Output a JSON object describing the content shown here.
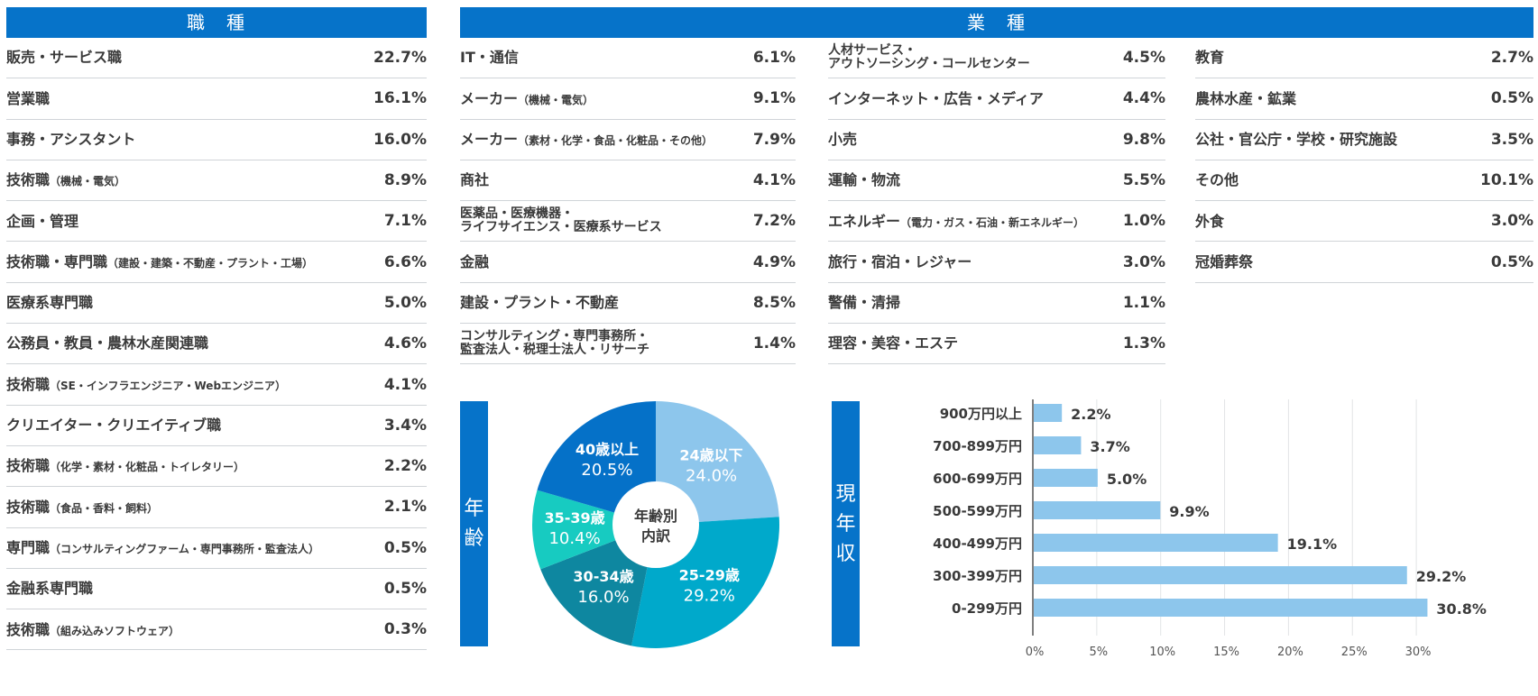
{
  "occupation": {
    "title": "職　種",
    "items": [
      {
        "label": "販売・サービス職",
        "sub": "",
        "value": "22.7%"
      },
      {
        "label": "営業職",
        "sub": "",
        "value": "16.1%"
      },
      {
        "label": "事務・アシスタント",
        "sub": "",
        "value": "16.0%"
      },
      {
        "label": "技術職",
        "sub": "（機械・電気）",
        "value": "8.9%"
      },
      {
        "label": "企画・管理",
        "sub": "",
        "value": "7.1%"
      },
      {
        "label": "技術職・専門職",
        "sub": "（建設・建築・不動産・プラント・工場）",
        "value": "6.6%"
      },
      {
        "label": "医療系専門職",
        "sub": "",
        "value": "5.0%"
      },
      {
        "label": "公務員・教員・農林水産関連職",
        "sub": "",
        "value": "4.6%"
      },
      {
        "label": "技術職",
        "sub": "（SE・インフラエンジニア・Webエンジニア）",
        "value": "4.1%"
      },
      {
        "label": "クリエイター・クリエイティブ職",
        "sub": "",
        "value": "3.4%"
      },
      {
        "label": "技術職",
        "sub": "（化学・素材・化粧品・トイレタリー）",
        "value": "2.2%"
      },
      {
        "label": "技術職",
        "sub": "（食品・香料・飼料）",
        "value": "2.1%"
      },
      {
        "label": "専門職",
        "sub": "（コンサルティングファーム・専門事務所・監査法人）",
        "value": "0.5%"
      },
      {
        "label": "金融系専門職",
        "sub": "",
        "value": "0.5%"
      },
      {
        "label": "技術職",
        "sub": "（組み込みソフトウェア）",
        "value": "0.3%"
      }
    ]
  },
  "industry": {
    "title": "業　種",
    "columns": [
      [
        {
          "label": "IT・通信",
          "sub": "",
          "value": "6.1%"
        },
        {
          "label": "メーカー",
          "sub": "（機械・電気）",
          "value": "9.1%"
        },
        {
          "label": "メーカー",
          "sub": "（素材・化学・食品・化粧品・その他）",
          "value": "7.9%"
        },
        {
          "label": "商社",
          "sub": "",
          "value": "4.1%"
        },
        {
          "label": "医薬品・医療機器・",
          "label2": "ライフサイエンス・医療系サービス",
          "sub": "",
          "value": "7.2%"
        },
        {
          "label": "金融",
          "sub": "",
          "value": "4.9%"
        },
        {
          "label": "建設・プラント・不動産",
          "sub": "",
          "value": "8.5%"
        },
        {
          "label": "コンサルティング・専門事務所・",
          "label2": "監査法人・税理士法人・リサーチ",
          "sub": "",
          "value": "1.4%"
        }
      ],
      [
        {
          "label": "人材サービス・",
          "label2": "アウトソーシング・コールセンター",
          "sub": "",
          "value": "4.5%"
        },
        {
          "label": "インターネット・広告・メディア",
          "sub": "",
          "value": "4.4%"
        },
        {
          "label": "小売",
          "sub": "",
          "value": "9.8%"
        },
        {
          "label": "運輸・物流",
          "sub": "",
          "value": "5.5%"
        },
        {
          "label": "エネルギー",
          "sub": "（電力・ガス・石油・新エネルギー）",
          "value": "1.0%"
        },
        {
          "label": "旅行・宿泊・レジャー",
          "sub": "",
          "value": "3.0%"
        },
        {
          "label": "警備・清掃",
          "sub": "",
          "value": "1.1%"
        },
        {
          "label": "理容・美容・エステ",
          "sub": "",
          "value": "1.3%"
        }
      ],
      [
        {
          "label": "教育",
          "sub": "",
          "value": "2.7%"
        },
        {
          "label": "農林水産・鉱業",
          "sub": "",
          "value": "0.5%"
        },
        {
          "label": "公社・官公庁・学校・研究施設",
          "sub": "",
          "value": "3.5%"
        },
        {
          "label": "その他",
          "sub": "",
          "value": "10.1%"
        },
        {
          "label": "外食",
          "sub": "",
          "value": "3.0%"
        },
        {
          "label": "冠婚葬祭",
          "sub": "",
          "value": "0.5%"
        }
      ]
    ]
  },
  "age": {
    "side_label_1": "年",
    "side_label_2": "齢"
  },
  "income": {
    "side_label_1": "現",
    "side_label_2": "年",
    "side_label_3": "収"
  },
  "chart_data": [
    {
      "type": "pie",
      "title": "年齢別内訳",
      "title_line1": "年齢別",
      "title_line2": "内訳",
      "categories": [
        "24歳以下",
        "25-29歳",
        "30-34歳",
        "35-39歳",
        "40歳以上"
      ],
      "values": [
        24.0,
        29.2,
        16.0,
        10.4,
        20.5
      ],
      "labels": [
        "24.0%",
        "29.2%",
        "16.0%",
        "10.4%",
        "20.5%"
      ],
      "colors": [
        "#8dc6ec",
        "#00a9cb",
        "#0e87a0",
        "#17cbc1",
        "#0571c8"
      ],
      "donut": true
    },
    {
      "type": "bar",
      "orientation": "horizontal",
      "categories": [
        "900万円以上",
        "700-899万円",
        "600-699万円",
        "500-599万円",
        "400-499万円",
        "300-399万円",
        "0-299万円"
      ],
      "values": [
        2.2,
        3.7,
        5.0,
        9.9,
        19.1,
        29.2,
        30.8
      ],
      "labels": [
        "2.2%",
        "3.7%",
        "5.0%",
        "9.9%",
        "19.1%",
        "29.2%",
        "30.8%"
      ],
      "xticks": [
        "0%",
        "5%",
        "10%",
        "15%",
        "20%",
        "25%",
        "30%"
      ],
      "xlim": [
        0,
        30
      ],
      "grid": true,
      "color": "#8dc6ec"
    }
  ]
}
